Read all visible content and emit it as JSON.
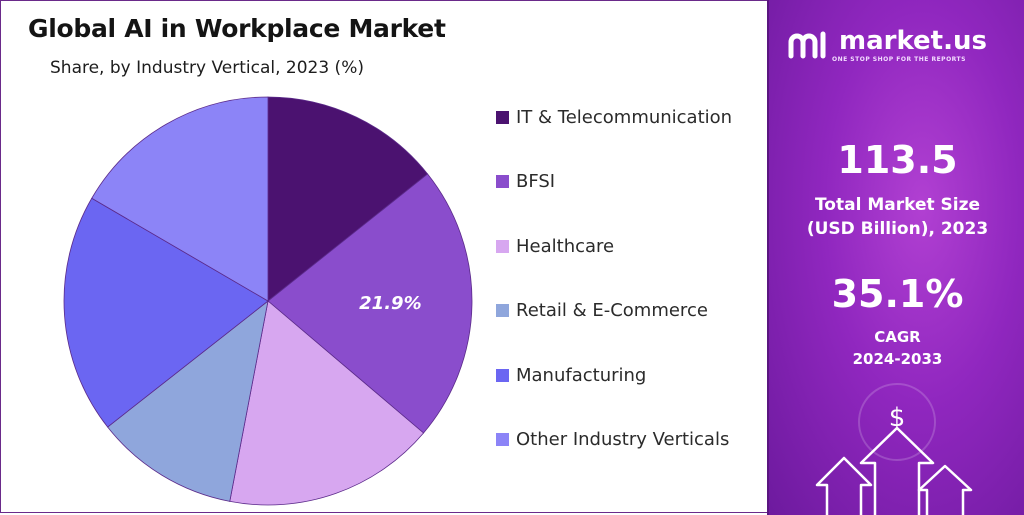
{
  "chart_data": {
    "type": "pie",
    "title": "Global AI in Workplace Market",
    "subtitle": "Share, by Industry Vertical, 2023 (%)",
    "categories": [
      "IT & Telecommunication",
      "BFSI",
      "Healthcare",
      "Retail & E-Commerce",
      "Manufacturing",
      "Other Industry Verticals"
    ],
    "values": [
      14.3,
      21.9,
      16.8,
      11.4,
      19.0,
      16.6
    ],
    "colors": [
      "#4b1270",
      "#8a4dcc",
      "#d7a7f0",
      "#8fa6dc",
      "#6b66f2",
      "#8c84f7"
    ],
    "data_labels": [
      {
        "category": "BFSI",
        "text": "21.9%"
      }
    ],
    "legend_position": "right"
  },
  "sidebar": {
    "brand": "market.us",
    "tagline": "ONE STOP SHOP FOR THE REPORTS",
    "market_size_value": "113.5",
    "market_size_label_line1": "Total Market Size",
    "market_size_label_line2": "(USD Billion), 2023",
    "cagr_value": "35.1%",
    "cagr_label_line1": "CAGR",
    "cagr_label_line2": "2024-2033",
    "dollar_symbol": "$"
  }
}
